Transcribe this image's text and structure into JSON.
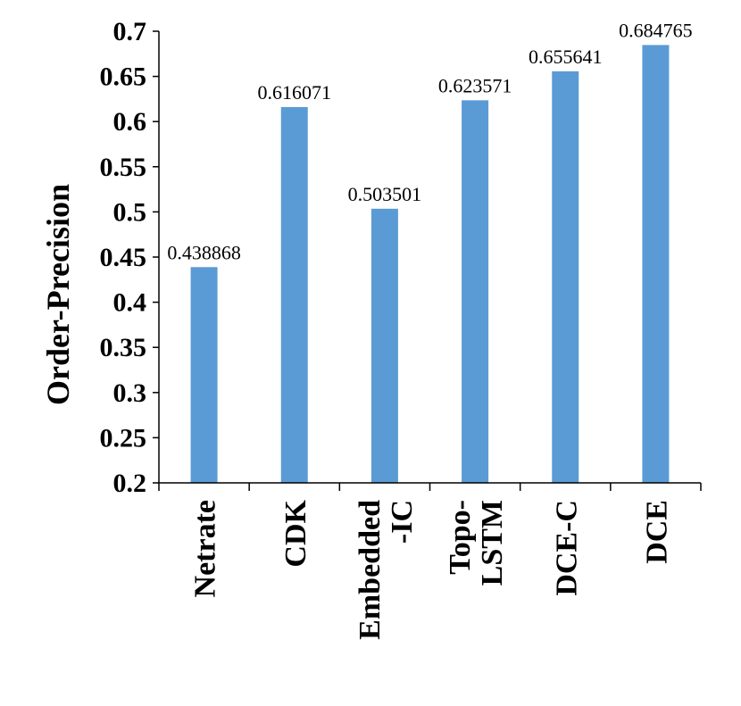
{
  "chart_data": {
    "type": "bar",
    "categories": [
      [
        "Netrate"
      ],
      [
        "CDK"
      ],
      [
        "Embedded",
        "-IC"
      ],
      [
        "Topo-",
        "LSTM"
      ],
      [
        "DCE-C"
      ],
      [
        "DCE"
      ]
    ],
    "values": [
      0.438868,
      0.616071,
      0.503501,
      0.623571,
      0.655641,
      0.684765
    ],
    "data_labels": [
      "0.438868",
      "0.616071",
      "0.503501",
      "0.623571",
      "0.655641",
      "0.684765"
    ],
    "ylabel": "Order-Precision",
    "xlabel": "",
    "ylim": [
      0.2,
      0.7
    ],
    "yticks": [
      "0.2",
      "0.25",
      "0.3",
      "0.35",
      "0.4",
      "0.45",
      "0.5",
      "0.55",
      "0.6",
      "0.65",
      "0.7"
    ],
    "bar_color": "#5B9BD5",
    "grid": false,
    "legend": "none"
  }
}
